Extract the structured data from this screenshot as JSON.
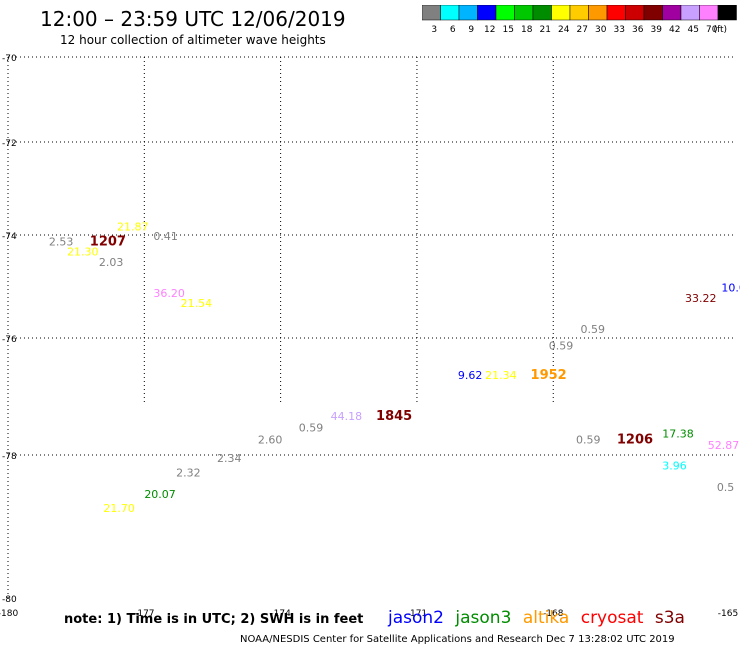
{
  "title": "12:00 – 23:59 UTC 12/06/2019",
  "subtitle": "12 hour collection of altimeter wave heights",
  "colorbar": {
    "unit": "(ft)",
    "bins": [
      {
        "label": "3",
        "color": "#808080"
      },
      {
        "label": "6",
        "color": "#00ffff"
      },
      {
        "label": "9",
        "color": "#00b4ff"
      },
      {
        "label": "12",
        "color": "#0000ff"
      },
      {
        "label": "15",
        "color": "#00ff00"
      },
      {
        "label": "18",
        "color": "#00c800"
      },
      {
        "label": "21",
        "color": "#008c00"
      },
      {
        "label": "24",
        "color": "#ffff00"
      },
      {
        "label": "27",
        "color": "#ffcc00"
      },
      {
        "label": "30",
        "color": "#ff9900"
      },
      {
        "label": "33",
        "color": "#ff0000"
      },
      {
        "label": "36",
        "color": "#cc0000"
      },
      {
        "label": "39",
        "color": "#800000"
      },
      {
        "label": "42",
        "color": "#a000a0"
      },
      {
        "label": "45",
        "color": "#c8a0ff"
      },
      {
        "label": "70",
        "color": "#ff80ff"
      },
      {
        "label": "",
        "color": "#000000"
      }
    ]
  },
  "map": {
    "lon_range": [
      -180,
      -164
    ],
    "lat_range": [
      -80,
      -70
    ],
    "lat_ticks": [
      {
        "value": -70,
        "label": "-70"
      },
      {
        "value": -72,
        "label": "-72"
      },
      {
        "value": -74,
        "label": "-74"
      },
      {
        "value": -76,
        "label": "-76"
      },
      {
        "value": -78,
        "label": "-78"
      },
      {
        "value": -80,
        "label": "-80"
      }
    ],
    "lon_ticks": [
      {
        "value": -180,
        "label": "-180"
      },
      {
        "value": -177,
        "label": "-177"
      },
      {
        "value": -174,
        "label": "-174"
      },
      {
        "value": -171,
        "label": "-171"
      },
      {
        "value": -168,
        "label": "-168"
      },
      {
        "value": -165,
        "label": "-165"
      }
    ],
    "points": [
      {
        "text": "2.53",
        "lon": -179.1,
        "lat": -74.2,
        "color": "#808080"
      },
      {
        "text": "1207",
        "lon": -178.2,
        "lat": -74.2,
        "color": "#800000",
        "time": true
      },
      {
        "text": "21.87",
        "lon": -177.6,
        "lat": -73.9,
        "color": "#ffff00"
      },
      {
        "text": "0.41",
        "lon": -176.8,
        "lat": -74.1,
        "color": "#808080"
      },
      {
        "text": "21.30",
        "lon": -178.7,
        "lat": -74.4,
        "color": "#ffff00"
      },
      {
        "text": "2.03",
        "lon": -178.0,
        "lat": -74.6,
        "color": "#808080"
      },
      {
        "text": "36.20",
        "lon": -176.8,
        "lat": -75.2,
        "color": "#ff80ff"
      },
      {
        "text": "21.54",
        "lon": -176.2,
        "lat": -75.4,
        "color": "#ffff00"
      },
      {
        "text": "33.22",
        "lon": -165.1,
        "lat": -75.3,
        "color": "#800000"
      },
      {
        "text": "10.05",
        "lon": -164.3,
        "lat": -75.1,
        "color": "#0000ff"
      },
      {
        "text": "0.59",
        "lon": -167.4,
        "lat": -75.9,
        "color": "#808080"
      },
      {
        "text": "0.59",
        "lon": -168.1,
        "lat": -76.2,
        "color": "#808080"
      },
      {
        "text": "9.62",
        "lon": -170.1,
        "lat": -76.7,
        "color": "#0000ff"
      },
      {
        "text": "21.34",
        "lon": -169.5,
        "lat": -76.7,
        "color": "#ffff00"
      },
      {
        "text": "1952",
        "lon": -168.5,
        "lat": -76.7,
        "color": "#ff9900",
        "time": true
      },
      {
        "text": "44.18",
        "lon": -172.9,
        "lat": -77.4,
        "color": "#c8a0ff"
      },
      {
        "text": "1845",
        "lon": -171.9,
        "lat": -77.4,
        "color": "#800000",
        "time": true
      },
      {
        "text": "0.59",
        "lon": -173.6,
        "lat": -77.6,
        "color": "#808080"
      },
      {
        "text": "2.60",
        "lon": -174.5,
        "lat": -77.8,
        "color": "#808080"
      },
      {
        "text": "2.34",
        "lon": -175.4,
        "lat": -78.1,
        "color": "#808080"
      },
      {
        "text": "2.32",
        "lon": -176.3,
        "lat": -78.3,
        "color": "#808080"
      },
      {
        "text": "20.07",
        "lon": -177.0,
        "lat": -78.6,
        "color": "#008c00"
      },
      {
        "text": "21.70",
        "lon": -177.9,
        "lat": -78.8,
        "color": "#ffff00"
      },
      {
        "text": "0.59",
        "lon": -167.5,
        "lat": -77.8,
        "color": "#808080"
      },
      {
        "text": "1206",
        "lon": -166.6,
        "lat": -77.8,
        "color": "#800000",
        "time": true
      },
      {
        "text": "17.38",
        "lon": -165.6,
        "lat": -77.7,
        "color": "#008c00"
      },
      {
        "text": "52.87",
        "lon": -164.6,
        "lat": -77.9,
        "color": "#ff80ff"
      },
      {
        "text": "3.96",
        "lon": -165.6,
        "lat": -78.2,
        "color": "#00ffff"
      },
      {
        "text": "0.5",
        "lon": -164.4,
        "lat": -78.5,
        "color": "#808080"
      }
    ]
  },
  "note": "note: 1) Time is in UTC; 2) SWH is in feet",
  "legend": [
    {
      "name": "jason2",
      "color": "#0000ff"
    },
    {
      "name": "jason3",
      "color": "#008c00"
    },
    {
      "name": "altika",
      "color": "#ff9900"
    },
    {
      "name": "cryosat",
      "color": "#ff0000"
    },
    {
      "name": "s3a",
      "color": "#800000"
    }
  ],
  "credit": "NOAA/NESDIS Center for Satellite Applications and Research    Dec  7 13:28:02 UTC 2019"
}
